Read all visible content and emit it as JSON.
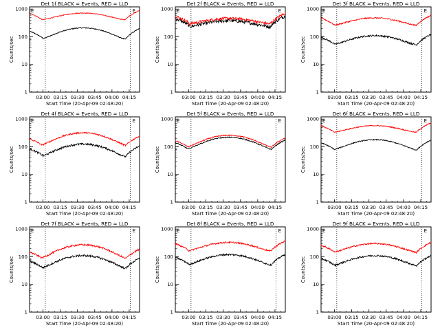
{
  "figure": {
    "x_tick_labels": [
      "03:00",
      "03:15",
      "03:30",
      "03:45",
      "04:00",
      "04:15"
    ],
    "x_title": "Start Time (20-Apr-09 02:48:20)",
    "y_title": "Counts/sec",
    "y_tick_labels": [
      "1",
      "10",
      "100",
      "1000"
    ],
    "corner_marks": [
      "E",
      "E"
    ]
  },
  "chart_data": [
    {
      "type": "line",
      "title": "Det 1f BLACK = Events, RED = LLD",
      "x_range": [
        "02:48:20",
        "04:24:00"
      ],
      "ylim": [
        1,
        1200
      ],
      "yscale": "log",
      "series": [
        {
          "color": "#000000",
          "base": 90,
          "peak": 210,
          "min": 66,
          "noise": 0.04
        },
        {
          "color": "#ff0000",
          "base": 400,
          "peak": 720,
          "min": 370,
          "noise": 0.03
        }
      ]
    },
    {
      "type": "line",
      "title": "Det 2f BLACK = Events, RED = LLD",
      "x_range": [
        "02:48:20",
        "04:24:00"
      ],
      "ylim": [
        1,
        1200
      ],
      "yscale": "log",
      "series": [
        {
          "color": "#000000",
          "base": 260,
          "peak": 380,
          "min": 210,
          "noise": 0.14
        },
        {
          "color": "#ff0000",
          "base": 320,
          "peak": 460,
          "min": 270,
          "noise": 0.12
        }
      ]
    },
    {
      "type": "line",
      "title": "Det 3f BLACK = Events, RED = LLD",
      "x_range": [
        "02:48:20",
        "04:24:00"
      ],
      "ylim": [
        1,
        1200
      ],
      "yscale": "log",
      "series": [
        {
          "color": "#000000",
          "base": 55,
          "peak": 110,
          "min": 44,
          "noise": 0.07
        },
        {
          "color": "#ff0000",
          "base": 270,
          "peak": 480,
          "min": 230,
          "noise": 0.05
        }
      ]
    },
    {
      "type": "line",
      "title": "Det 4f BLACK = Events, RED = LLD",
      "x_range": [
        "02:48:20",
        "04:24:00"
      ],
      "ylim": [
        1,
        1200
      ],
      "yscale": "log",
      "series": [
        {
          "color": "#000000",
          "base": 48,
          "peak": 125,
          "min": 35,
          "noise": 0.08
        },
        {
          "color": "#ff0000",
          "base": 110,
          "peak": 320,
          "min": 90,
          "noise": 0.06
        }
      ]
    },
    {
      "type": "line",
      "title": "Det 5f BLACK = Events, RED = LLD",
      "x_range": [
        "02:48:20",
        "04:24:00"
      ],
      "ylim": [
        1,
        1200
      ],
      "yscale": "log",
      "series": [
        {
          "color": "#000000",
          "base": 80,
          "peak": 220,
          "min": 65,
          "noise": 0.04
        },
        {
          "color": "#ff0000",
          "base": 95,
          "peak": 260,
          "min": 78,
          "noise": 0.04
        }
      ]
    },
    {
      "type": "line",
      "title": "Det 6f BLACK = Events, RED = LLD",
      "x_range": [
        "02:48:20",
        "04:24:00"
      ],
      "ylim": [
        1,
        1200
      ],
      "yscale": "log",
      "series": [
        {
          "color": "#000000",
          "base": 80,
          "peak": 180,
          "min": 64,
          "noise": 0.04
        },
        {
          "color": "#ff0000",
          "base": 330,
          "peak": 580,
          "min": 300,
          "noise": 0.04
        }
      ]
    },
    {
      "type": "line",
      "title": "Det 7f BLACK = Events, RED = LLD",
      "x_range": [
        "02:48:20",
        "04:24:00"
      ],
      "ylim": [
        1,
        1200
      ],
      "yscale": "log",
      "series": [
        {
          "color": "#000000",
          "base": 40,
          "peak": 110,
          "min": 30,
          "noise": 0.08
        },
        {
          "color": "#ff0000",
          "base": 85,
          "peak": 270,
          "min": 68,
          "noise": 0.07
        }
      ]
    },
    {
      "type": "line",
      "title": "Det 8f BLACK = Events, RED = LLD",
      "x_range": [
        "02:48:20",
        "04:24:00"
      ],
      "ylim": [
        1,
        1200
      ],
      "yscale": "log",
      "series": [
        {
          "color": "#000000",
          "base": 55,
          "peak": 120,
          "min": 42,
          "noise": 0.07
        },
        {
          "color": "#ff0000",
          "base": 170,
          "peak": 330,
          "min": 140,
          "noise": 0.06
        }
      ]
    },
    {
      "type": "line",
      "title": "Det 9f BLACK = Events, RED = LLD",
      "x_range": [
        "02:48:20",
        "04:24:00"
      ],
      "ylim": [
        1,
        1200
      ],
      "yscale": "log",
      "series": [
        {
          "color": "#000000",
          "base": 50,
          "peak": 110,
          "min": 40,
          "noise": 0.07
        },
        {
          "color": "#ff0000",
          "base": 150,
          "peak": 300,
          "min": 125,
          "noise": 0.06
        }
      ]
    }
  ]
}
